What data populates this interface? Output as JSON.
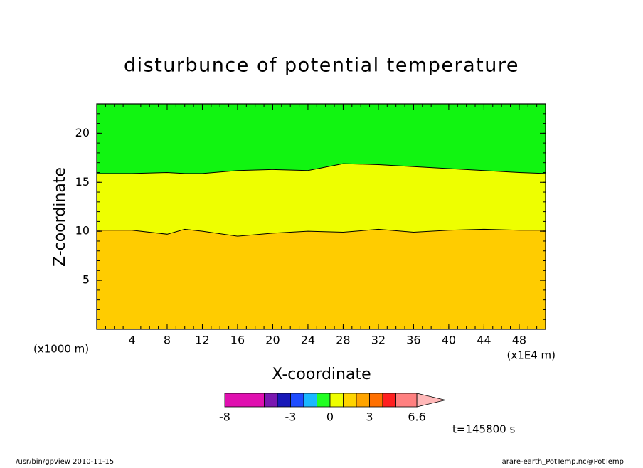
{
  "chart_data": {
    "type": "contour",
    "title": "disturbunce of potential temperature",
    "x_label": "X-coordinate",
    "y_label": "Z-coordinate",
    "y_unit_note": "(x1000 m)",
    "x_unit_note": "(x1E4 m)",
    "time_note": "t=145800 s",
    "footer_left": "/usr/bin/gpview  2010-11-15",
    "footer_right": "arare-earth_PotTemp.nc@PotTemp",
    "xlim": [
      0,
      51
    ],
    "ylim": [
      0,
      23
    ],
    "xticks": [
      4,
      8,
      12,
      16,
      20,
      24,
      28,
      32,
      36,
      40,
      44,
      48
    ],
    "yticks": [
      5,
      10,
      15,
      20
    ],
    "minor_ticks": true,
    "x": [
      0,
      4,
      8,
      10,
      12,
      16,
      20,
      24,
      28,
      32,
      36,
      40,
      44,
      48,
      51
    ],
    "contour_lines": [
      [
        10.1,
        10.1,
        9.7,
        10.2,
        10.0,
        9.5,
        9.8,
        10.0,
        9.9,
        10.2,
        9.9,
        10.1,
        10.2,
        10.1,
        10.1
      ],
      [
        15.9,
        15.9,
        16.0,
        15.9,
        15.9,
        16.2,
        16.3,
        16.2,
        16.9,
        16.8,
        16.6,
        16.4,
        16.2,
        16.0,
        15.9
      ]
    ],
    "band_colors": [
      "#ffcc00",
      "#eeff00",
      "#11f511"
    ],
    "colorbar": {
      "levels": [
        -8,
        -5,
        -4,
        -3,
        -2,
        -1,
        0,
        1,
        2,
        3,
        4,
        5,
        6.6
      ],
      "colors": [
        "#e010b0",
        "#7a18b0",
        "#1818b8",
        "#1e4cff",
        "#1ab8ff",
        "#22ff22",
        "#eeff00",
        "#ffd400",
        "#ffa400",
        "#ff7000",
        "#ff2020",
        "#ff8080"
      ],
      "extend_color": "#ffb8b8",
      "ticks": [
        -8,
        -3,
        0,
        3,
        6.6
      ]
    }
  }
}
